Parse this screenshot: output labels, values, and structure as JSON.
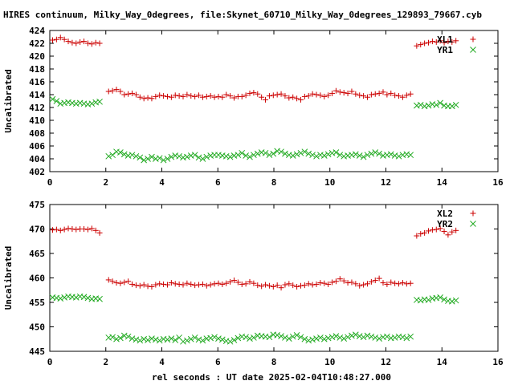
{
  "title": "HIRES continuum, Milky_Way_0degrees, file:Skynet_60710_Milky_Way_0degrees_129893_79667.cyb",
  "xlabel": "rel seconds : UT date 2025-02-04T10:48:27.000",
  "colors": {
    "xl_series": "#cc0000",
    "yr_series": "#22aa22",
    "frame": "#000000"
  },
  "chart_data": [
    {
      "type": "scatter",
      "ylabel": "Uncalibrated",
      "xlim": [
        0,
        16
      ],
      "ylim": [
        402,
        424
      ],
      "xticks": [
        "0",
        "2",
        "4",
        "6",
        "8",
        "10",
        "12",
        "14",
        "16"
      ],
      "yticks": [
        "402",
        "404",
        "406",
        "408",
        "410",
        "412",
        "414",
        "416",
        "418",
        "420",
        "422",
        "424"
      ],
      "grid": false,
      "legend_position": "top-right",
      "series": [
        {
          "name": "XL1",
          "marker": "plus",
          "x": [
            0.1,
            0.24,
            0.38,
            0.52,
            0.66,
            0.8,
            0.94,
            1.08,
            1.22,
            1.36,
            1.5,
            1.64,
            1.78,
            2.1,
            2.24,
            2.38,
            2.52,
            2.66,
            2.8,
            2.94,
            3.08,
            3.22,
            3.36,
            3.5,
            3.64,
            3.78,
            3.92,
            4.06,
            4.2,
            4.34,
            4.48,
            4.62,
            4.76,
            4.9,
            5.04,
            5.18,
            5.32,
            5.46,
            5.6,
            5.74,
            5.88,
            6.02,
            6.16,
            6.3,
            6.44,
            6.58,
            6.72,
            6.86,
            7.0,
            7.14,
            7.28,
            7.42,
            7.56,
            7.7,
            7.84,
            7.98,
            8.12,
            8.26,
            8.4,
            8.54,
            8.68,
            8.82,
            8.96,
            9.1,
            9.24,
            9.38,
            9.52,
            9.66,
            9.8,
            9.94,
            10.08,
            10.22,
            10.36,
            10.5,
            10.64,
            10.78,
            10.92,
            11.06,
            11.2,
            11.34,
            11.48,
            11.62,
            11.76,
            11.9,
            12.04,
            12.18,
            12.32,
            12.46,
            12.6,
            12.74,
            12.88,
            13.1,
            13.24,
            13.38,
            13.52,
            13.66,
            13.8,
            13.94,
            14.08,
            14.22,
            14.36,
            14.5
          ],
          "y": [
            422.5,
            422.6,
            422.9,
            422.6,
            422.3,
            422.1,
            422.0,
            422.2,
            422.3,
            422.0,
            421.9,
            422.1,
            422.0,
            414.5,
            414.6,
            414.8,
            414.5,
            414.0,
            414.1,
            414.2,
            414.0,
            413.6,
            413.4,
            413.5,
            413.4,
            413.7,
            413.9,
            413.8,
            413.7,
            413.6,
            413.9,
            413.8,
            413.7,
            414.0,
            413.8,
            413.7,
            413.9,
            413.6,
            413.7,
            413.8,
            413.6,
            413.7,
            413.6,
            414.0,
            413.8,
            413.5,
            413.7,
            413.7,
            413.9,
            414.2,
            414.3,
            414.1,
            413.6,
            413.2,
            413.8,
            413.9,
            414.0,
            414.1,
            413.8,
            413.5,
            413.6,
            413.4,
            413.2,
            413.7,
            413.8,
            414.1,
            414.0,
            413.9,
            413.7,
            413.9,
            414.2,
            414.6,
            414.4,
            414.3,
            414.2,
            414.5,
            414.1,
            413.9,
            413.8,
            413.6,
            414.0,
            414.1,
            414.2,
            414.4,
            414.0,
            414.2,
            413.9,
            413.8,
            413.6,
            413.9,
            414.1,
            421.6,
            421.8,
            422.0,
            422.1,
            422.3,
            422.2,
            422.4,
            422.1,
            422.3,
            422.2,
            422.4
          ]
        },
        {
          "name": "YR1",
          "marker": "cross",
          "x": [
            0.1,
            0.24,
            0.38,
            0.52,
            0.66,
            0.8,
            0.94,
            1.08,
            1.22,
            1.36,
            1.5,
            1.64,
            1.78,
            2.1,
            2.24,
            2.38,
            2.52,
            2.66,
            2.8,
            2.94,
            3.08,
            3.22,
            3.36,
            3.5,
            3.64,
            3.78,
            3.92,
            4.06,
            4.2,
            4.34,
            4.48,
            4.62,
            4.76,
            4.9,
            5.04,
            5.18,
            5.32,
            5.46,
            5.6,
            5.74,
            5.88,
            6.02,
            6.16,
            6.3,
            6.44,
            6.58,
            6.72,
            6.86,
            7.0,
            7.14,
            7.28,
            7.42,
            7.56,
            7.7,
            7.84,
            7.98,
            8.12,
            8.26,
            8.4,
            8.54,
            8.68,
            8.82,
            8.96,
            9.1,
            9.24,
            9.38,
            9.52,
            9.66,
            9.8,
            9.94,
            10.08,
            10.22,
            10.36,
            10.5,
            10.64,
            10.78,
            10.92,
            11.06,
            11.2,
            11.34,
            11.48,
            11.62,
            11.76,
            11.9,
            12.04,
            12.18,
            12.32,
            12.46,
            12.6,
            12.74,
            12.88,
            13.1,
            13.24,
            13.38,
            13.52,
            13.66,
            13.8,
            13.94,
            14.08,
            14.22,
            14.36,
            14.5
          ],
          "y": [
            413.3,
            413.0,
            412.6,
            412.7,
            412.8,
            412.7,
            412.6,
            412.7,
            412.6,
            412.5,
            412.6,
            412.8,
            412.9,
            404.4,
            404.6,
            405.1,
            405.0,
            404.7,
            404.5,
            404.6,
            404.4,
            404.2,
            403.8,
            404.0,
            404.3,
            404.0,
            404.1,
            403.8,
            404.0,
            404.3,
            404.5,
            404.4,
            404.2,
            404.3,
            404.5,
            404.6,
            404.2,
            404.0,
            404.3,
            404.5,
            404.6,
            404.6,
            404.5,
            404.4,
            404.3,
            404.5,
            404.6,
            404.9,
            404.5,
            404.3,
            404.6,
            404.8,
            405.0,
            404.9,
            404.6,
            404.8,
            405.2,
            405.1,
            404.8,
            404.6,
            404.5,
            404.7,
            404.9,
            405.1,
            404.8,
            404.6,
            404.4,
            404.6,
            404.5,
            404.7,
            404.9,
            405.0,
            404.6,
            404.4,
            404.5,
            404.6,
            404.7,
            404.5,
            404.3,
            404.6,
            404.8,
            405.0,
            404.8,
            404.5,
            404.6,
            404.7,
            404.5,
            404.4,
            404.6,
            404.7,
            404.6,
            412.3,
            412.4,
            412.2,
            412.3,
            412.5,
            412.4,
            412.7,
            412.3,
            412.2,
            412.2,
            412.4
          ]
        }
      ]
    },
    {
      "type": "scatter",
      "ylabel": "Uncalibrated",
      "xlim": [
        0,
        16
      ],
      "ylim": [
        445,
        475
      ],
      "xticks": [
        "0",
        "2",
        "4",
        "6",
        "8",
        "10",
        "12",
        "14",
        "16"
      ],
      "yticks": [
        "445",
        "450",
        "455",
        "460",
        "465",
        "470",
        "475"
      ],
      "grid": false,
      "legend_position": "top-right",
      "series": [
        {
          "name": "XL2",
          "marker": "plus",
          "x": [
            0.1,
            0.24,
            0.38,
            0.52,
            0.66,
            0.8,
            0.94,
            1.08,
            1.22,
            1.36,
            1.5,
            1.64,
            1.78,
            2.1,
            2.24,
            2.38,
            2.52,
            2.66,
            2.8,
            2.94,
            3.08,
            3.22,
            3.36,
            3.5,
            3.64,
            3.78,
            3.92,
            4.06,
            4.2,
            4.34,
            4.48,
            4.62,
            4.76,
            4.9,
            5.04,
            5.18,
            5.32,
            5.46,
            5.6,
            5.74,
            5.88,
            6.02,
            6.16,
            6.3,
            6.44,
            6.58,
            6.72,
            6.86,
            7.0,
            7.14,
            7.28,
            7.42,
            7.56,
            7.7,
            7.84,
            7.98,
            8.12,
            8.26,
            8.4,
            8.54,
            8.68,
            8.82,
            8.96,
            9.1,
            9.24,
            9.38,
            9.52,
            9.66,
            9.8,
            9.94,
            10.08,
            10.22,
            10.36,
            10.5,
            10.64,
            10.78,
            10.92,
            11.06,
            11.2,
            11.34,
            11.48,
            11.62,
            11.76,
            11.9,
            12.04,
            12.18,
            12.32,
            12.46,
            12.6,
            12.74,
            12.88,
            13.1,
            13.24,
            13.38,
            13.52,
            13.66,
            13.8,
            13.94,
            14.08,
            14.22,
            14.36,
            14.5
          ],
          "y": [
            469.8,
            469.9,
            469.7,
            469.9,
            470.1,
            470.0,
            469.9,
            470.0,
            470.0,
            469.9,
            470.1,
            469.7,
            469.2,
            459.6,
            459.3,
            459.0,
            458.9,
            459.1,
            459.3,
            458.7,
            458.5,
            458.4,
            458.6,
            458.3,
            458.2,
            458.6,
            458.8,
            458.7,
            458.6,
            459.0,
            458.8,
            458.7,
            458.6,
            458.9,
            458.7,
            458.5,
            458.6,
            458.7,
            458.4,
            458.6,
            458.8,
            458.9,
            458.7,
            458.9,
            459.2,
            459.5,
            459.1,
            458.7,
            458.8,
            459.2,
            458.9,
            458.5,
            458.3,
            458.6,
            458.4,
            458.2,
            458.5,
            458.0,
            458.6,
            458.8,
            458.5,
            458.2,
            458.4,
            458.5,
            458.8,
            458.6,
            458.7,
            459.0,
            458.9,
            458.7,
            459.1,
            459.3,
            459.8,
            459.4,
            459.0,
            459.1,
            458.8,
            458.4,
            458.6,
            458.8,
            459.2,
            459.5,
            459.9,
            459.0,
            458.7,
            459.1,
            458.9,
            458.8,
            459.0,
            458.8,
            458.9,
            468.6,
            469.0,
            469.2,
            469.6,
            469.8,
            469.9,
            470.1,
            469.5,
            468.8,
            469.4,
            469.7
          ]
        },
        {
          "name": "YR2",
          "marker": "cross",
          "x": [
            0.1,
            0.24,
            0.38,
            0.52,
            0.66,
            0.8,
            0.94,
            1.08,
            1.22,
            1.36,
            1.5,
            1.64,
            1.78,
            2.1,
            2.24,
            2.38,
            2.52,
            2.66,
            2.8,
            2.94,
            3.08,
            3.22,
            3.36,
            3.5,
            3.64,
            3.78,
            3.92,
            4.06,
            4.2,
            4.34,
            4.48,
            4.62,
            4.76,
            4.9,
            5.04,
            5.18,
            5.32,
            5.46,
            5.6,
            5.74,
            5.88,
            6.02,
            6.16,
            6.3,
            6.44,
            6.58,
            6.72,
            6.86,
            7.0,
            7.14,
            7.28,
            7.42,
            7.56,
            7.7,
            7.84,
            7.98,
            8.12,
            8.26,
            8.4,
            8.54,
            8.68,
            8.82,
            8.96,
            9.1,
            9.24,
            9.38,
            9.52,
            9.66,
            9.8,
            9.94,
            10.08,
            10.22,
            10.36,
            10.5,
            10.64,
            10.78,
            10.92,
            11.06,
            11.2,
            11.34,
            11.48,
            11.62,
            11.76,
            11.9,
            12.04,
            12.18,
            12.32,
            12.46,
            12.6,
            12.74,
            12.88,
            13.1,
            13.24,
            13.38,
            13.52,
            13.66,
            13.8,
            13.94,
            14.08,
            14.22,
            14.36,
            14.5
          ],
          "y": [
            456.0,
            455.9,
            455.8,
            456.0,
            456.2,
            456.1,
            456.0,
            456.2,
            456.1,
            455.9,
            455.7,
            455.8,
            455.7,
            447.8,
            447.9,
            447.5,
            447.7,
            448.2,
            448.0,
            447.6,
            447.4,
            447.2,
            447.5,
            447.3,
            447.6,
            447.4,
            447.2,
            447.5,
            447.4,
            447.6,
            447.3,
            447.8,
            447.0,
            447.2,
            447.5,
            447.8,
            447.4,
            447.2,
            447.6,
            447.7,
            447.9,
            447.6,
            447.4,
            447.1,
            447.0,
            447.3,
            447.7,
            448.0,
            447.9,
            447.6,
            447.8,
            448.2,
            448.1,
            448.0,
            447.9,
            448.4,
            448.3,
            448.1,
            447.8,
            447.6,
            448.0,
            448.3,
            447.9,
            447.5,
            447.2,
            447.4,
            447.6,
            447.8,
            447.5,
            447.7,
            447.9,
            448.1,
            447.8,
            447.6,
            447.9,
            448.2,
            448.4,
            448.1,
            447.9,
            448.2,
            448.0,
            447.8,
            447.6,
            447.9,
            448.0,
            447.7,
            447.8,
            448.0,
            447.9,
            447.7,
            448.0,
            455.5,
            455.4,
            455.6,
            455.5,
            455.8,
            455.9,
            456.0,
            455.6,
            455.3,
            455.2,
            455.4
          ]
        }
      ]
    }
  ]
}
